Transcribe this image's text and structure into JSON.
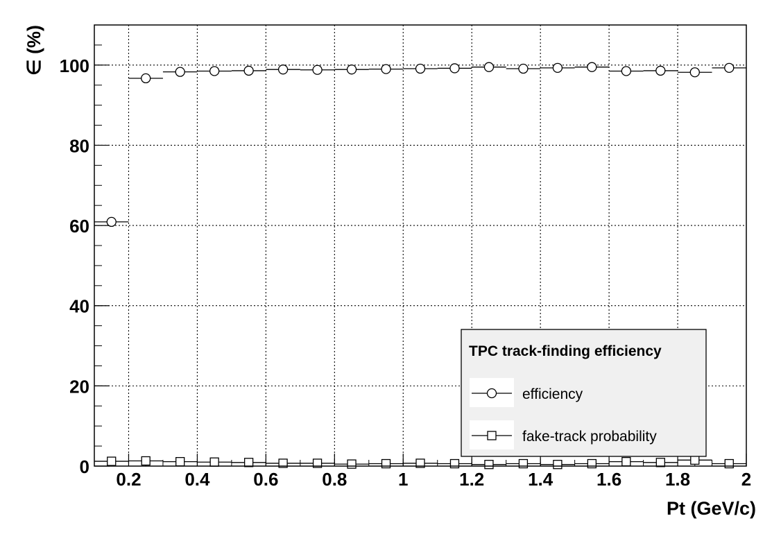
{
  "chart_data": {
    "type": "scatter",
    "title": "",
    "xlabel": "Pt (GeV/c)",
    "ylabel": "∈ (%)",
    "xlim": [
      0.1,
      2.0
    ],
    "ylim": [
      0,
      110
    ],
    "x_ticks": [
      0.2,
      0.4,
      0.6,
      0.8,
      1.0,
      1.2,
      1.4,
      1.6,
      1.8,
      2.0
    ],
    "x_tick_labels": [
      "0.2",
      "0.4",
      "0.6",
      "0.8",
      "1",
      "1.2",
      "1.4",
      "1.6",
      "1.8",
      "2"
    ],
    "y_ticks": [
      0,
      20,
      40,
      60,
      80,
      100
    ],
    "y_tick_labels": [
      "0",
      "20",
      "40",
      "60",
      "80",
      "100"
    ],
    "grid": true,
    "bin_width": 0.1,
    "x": [
      0.15,
      0.25,
      0.35,
      0.45,
      0.55,
      0.65,
      0.75,
      0.85,
      0.95,
      1.05,
      1.15,
      1.25,
      1.35,
      1.45,
      1.55,
      1.65,
      1.75,
      1.85,
      1.95
    ],
    "series": [
      {
        "name": "efficiency",
        "marker": "circle",
        "values": [
          60.9,
          96.7,
          98.3,
          98.5,
          98.6,
          98.9,
          98.8,
          98.9,
          99.0,
          99.1,
          99.2,
          99.5,
          99.1,
          99.3,
          99.5,
          98.5,
          98.6,
          98.2,
          99.3
        ]
      },
      {
        "name": "fake-track probability",
        "marker": "square",
        "values": [
          1.2,
          1.3,
          1.1,
          1.0,
          0.9,
          0.7,
          0.7,
          0.5,
          0.6,
          0.7,
          0.6,
          0.4,
          0.6,
          0.4,
          0.6,
          1.1,
          0.9,
          1.5,
          0.6
        ]
      }
    ],
    "legend": {
      "title": "TPC track-finding efficiency",
      "position": "bottom-right"
    }
  }
}
